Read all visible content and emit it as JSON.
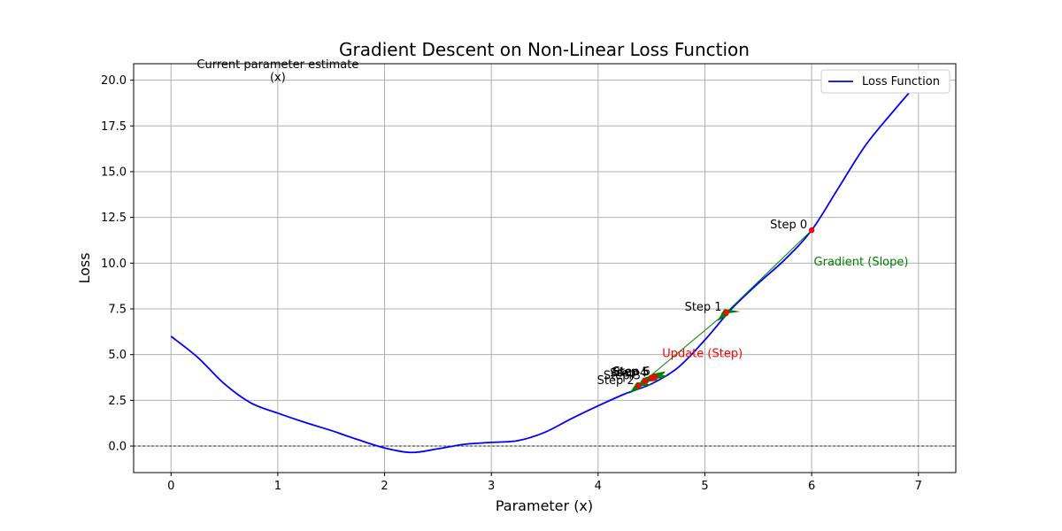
{
  "chart_data": {
    "type": "line",
    "title": "Gradient Descent on Non-Linear Loss Function",
    "xlabel": "Parameter (x)",
    "ylabel": "Loss",
    "xlim": [
      -0.35,
      7.35
    ],
    "ylim": [
      -1.45,
      20.9
    ],
    "xticks": [
      0,
      1,
      2,
      3,
      4,
      5,
      6,
      7
    ],
    "yticks": [
      0.0,
      2.5,
      5.0,
      7.5,
      10.0,
      12.5,
      15.0,
      17.5,
      20.0
    ],
    "xtick_labels": [
      "0",
      "1",
      "2",
      "3",
      "4",
      "5",
      "6",
      "7"
    ],
    "ytick_labels": [
      "0.0",
      "2.5",
      "5.0",
      "7.5",
      "10.0",
      "12.5",
      "15.0",
      "17.5",
      "20.0"
    ],
    "grid": true,
    "zero_line": true,
    "legend": {
      "position": "top-right",
      "entries": [
        "Loss Function"
      ]
    },
    "colors": {
      "loss": "#0000ff",
      "point": "#ff0000",
      "gradient": "#008000",
      "update": "#ff0000"
    },
    "series": [
      {
        "name": "Loss Function",
        "x": [
          0,
          0.25,
          0.5,
          0.75,
          1.0,
          1.25,
          1.5,
          1.75,
          2.0,
          2.25,
          2.5,
          2.75,
          3.0,
          3.25,
          3.5,
          3.75,
          4.0,
          4.25,
          4.5,
          4.75,
          5.0,
          5.25,
          5.5,
          5.75,
          6.0,
          6.25,
          6.5,
          6.75,
          7.0
        ],
        "y": [
          6.0,
          4.85,
          3.4,
          2.35,
          1.8,
          1.3,
          0.85,
          0.35,
          -0.1,
          -0.35,
          -0.15,
          0.1,
          0.2,
          0.3,
          0.75,
          1.5,
          2.2,
          2.85,
          3.4,
          4.3,
          5.8,
          7.5,
          8.9,
          10.2,
          11.8,
          14.1,
          16.4,
          18.2,
          19.9
        ]
      }
    ],
    "steps": [
      {
        "label": "Step 0",
        "x": 6.0,
        "y": 11.8
      },
      {
        "label": "Step 1",
        "x": 5.2,
        "y": 7.3
      },
      {
        "label": "Step 2",
        "x": 4.38,
        "y": 3.3
      },
      {
        "label": "Step 3",
        "x": 4.44,
        "y": 3.55
      },
      {
        "label": "Step 4",
        "x": 4.5,
        "y": 3.7
      },
      {
        "label": "Step 5",
        "x": 4.52,
        "y": 3.75
      },
      {
        "label": "Step 6",
        "x": 4.53,
        "y": 3.78
      }
    ],
    "annotations": [
      {
        "text": "Current parameter estimate",
        "x": 1.0,
        "y": 20.9,
        "color": "#000000"
      },
      {
        "text": "(x)",
        "x": 1.0,
        "y": 20.2,
        "color": "#000000"
      },
      {
        "text": "Gradient (Slope)",
        "x": 6.02,
        "y": 10.1,
        "color": "#008000"
      },
      {
        "text": "Update (Step)",
        "x": 4.6,
        "y": 5.1,
        "color": "#ff0000"
      }
    ]
  }
}
